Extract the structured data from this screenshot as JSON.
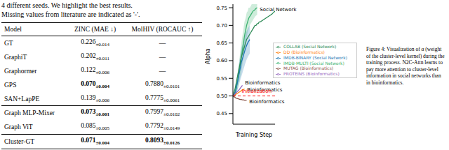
{
  "document": {
    "text_above": [
      "4 different seeds. We highlight the best results.",
      "Missing values from literature are indicated as '-'."
    ],
    "table": {
      "columns": [
        "Model",
        "ZINC (MAE ↓)",
        "MolHIV (ROCAUC ↑)"
      ],
      "groups": [
        [
          {
            "model": "GT",
            "cells": [
              {
                "mean": "0.226",
                "std": "±0.014",
                "bold": false
              },
              {
                "text": "—"
              }
            ]
          },
          {
            "model": "GraphiT",
            "cells": [
              {
                "mean": "0.202",
                "std": "±0.011",
                "bold": false
              },
              {
                "text": "—"
              }
            ]
          },
          {
            "model": "Graphormer",
            "cells": [
              {
                "mean": "0.122",
                "std": "±0.006",
                "bold": false
              },
              {
                "text": "—"
              }
            ]
          },
          {
            "model": "GPS",
            "cells": [
              {
                "mean": "0.070",
                "std": "±0.004",
                "bold": true
              },
              {
                "mean": "0.7880",
                "std": "±0.0101",
                "bold": false
              }
            ]
          },
          {
            "model": "SAN+LapPE",
            "cells": [
              {
                "mean": "0.139",
                "std": "±0.006",
                "bold": false
              },
              {
                "mean": "0.7775",
                "std": "±0.0061",
                "bold": false
              }
            ]
          }
        ],
        [
          {
            "model": "Graph MLP-Mixer",
            "cells": [
              {
                "mean": "0.073",
                "std": "±0.001",
                "bold": true
              },
              {
                "mean": "0.7997",
                "std": "±0.0102",
                "bold": false
              }
            ]
          },
          {
            "model": "Graph ViT",
            "cells": [
              {
                "mean": "0.085",
                "std": "±0.005",
                "bold": false
              },
              {
                "mean": "0.7792",
                "std": "±0.0149",
                "bold": false
              }
            ]
          }
        ],
        [
          {
            "model": "Cluster-GT",
            "cells": [
              {
                "mean": "0.071",
                "std": "±0.004",
                "bold": true
              },
              {
                "mean": "0.8093",
                "std": "±0.0126",
                "bold": true
              }
            ]
          }
        ]
      ]
    },
    "caption": "Figure 4: Visualization of α (weight of the cluster-level kernel) during the training process. N2C-Attn learns to pay more attention to cluster-level information in social networks than in bioinformatics."
  },
  "chart_data": {
    "type": "line",
    "x_label": "Training Step",
    "y_label": "Alpha",
    "xlim": [
      0,
      40
    ],
    "ylim": [
      0.42,
      0.76
    ],
    "yticks": [
      0.45,
      {
        "value": 0.5,
        "label": "0.50"
      },
      0.55,
      {
        "value": 0.6,
        "label": "0.60"
      },
      0.65,
      {
        "value": 0.7,
        "label": "0.70"
      },
      0.75
    ],
    "tick_labels": "y",
    "grid": false,
    "legend": "upper right",
    "series": [
      {
        "name": "IMDB-MULTI (Social Network)",
        "color": "#3cb371",
        "x": [
          0,
          1,
          2,
          3,
          4,
          5,
          6,
          7,
          8,
          9,
          10,
          11,
          12,
          13,
          14,
          15,
          16,
          17,
          18,
          19,
          20,
          21,
          22,
          23
        ],
        "values": [
          0.5,
          0.5,
          0.51,
          0.52,
          0.535,
          0.55,
          0.57,
          0.59,
          0.61,
          0.63,
          0.65,
          0.67,
          0.685,
          0.7,
          0.71,
          0.72,
          0.725,
          0.73,
          0.735,
          0.74,
          0.742,
          0.745,
          0.748,
          0.75
        ],
        "lower": [
          0.5,
          0.495,
          0.5,
          0.505,
          0.515,
          0.525,
          0.54,
          0.555,
          0.57,
          0.59,
          0.61,
          0.63,
          0.65,
          0.665,
          0.68,
          0.69,
          0.7,
          0.705,
          0.71,
          0.715,
          0.72,
          0.725,
          0.728,
          0.73
        ],
        "upper": [
          0.5,
          0.505,
          0.52,
          0.535,
          0.555,
          0.575,
          0.6,
          0.625,
          0.65,
          0.67,
          0.69,
          0.71,
          0.72,
          0.735,
          0.74,
          0.75,
          0.75,
          0.755,
          0.76,
          0.76,
          0.762,
          0.765,
          0.768,
          0.77
        ]
      },
      {
        "name": "IMDB-BINARY (Social Network)",
        "color": "#1f77b4",
        "x": [
          0,
          1,
          2,
          3,
          4,
          5,
          6,
          7,
          8,
          9,
          10,
          11,
          12,
          13,
          14,
          15,
          16
        ],
        "values": [
          0.5,
          0.5,
          0.51,
          0.52,
          0.535,
          0.55,
          0.565,
          0.58,
          0.595,
          0.605,
          0.615,
          0.625,
          0.635,
          0.643,
          0.65,
          0.655,
          0.66
        ],
        "lower": [
          0.5,
          0.495,
          0.5,
          0.505,
          0.515,
          0.525,
          0.535,
          0.545,
          0.555,
          0.565,
          0.575,
          0.585,
          0.595,
          0.603,
          0.61,
          0.615,
          0.62
        ],
        "upper": [
          0.5,
          0.505,
          0.52,
          0.535,
          0.555,
          0.575,
          0.595,
          0.615,
          0.635,
          0.645,
          0.655,
          0.665,
          0.675,
          0.683,
          0.69,
          0.695,
          0.7
        ]
      },
      {
        "name": "COLLAB (Social Network)",
        "color": "#2e8b57",
        "x": [
          0,
          1,
          2,
          3,
          4,
          5,
          6,
          7,
          8,
          9,
          10,
          11,
          12,
          13,
          14,
          15,
          16,
          17,
          18,
          19,
          20,
          21,
          22,
          23,
          24,
          25,
          26,
          27,
          28,
          29,
          30,
          31,
          32,
          33,
          34,
          35,
          36,
          37,
          38,
          39,
          40
        ],
        "values": [
          0.5,
          0.51,
          0.52,
          0.535,
          0.55,
          0.565,
          0.58,
          0.595,
          0.61,
          0.62,
          0.63,
          0.64,
          0.65,
          0.66,
          0.665,
          0.67,
          0.675,
          0.68,
          0.685,
          0.69,
          0.695,
          0.7,
          0.7,
          0.705,
          0.705,
          0.71,
          0.71,
          0.712,
          0.714,
          0.716,
          0.718,
          0.72,
          0.722,
          0.724,
          0.726,
          0.728,
          0.73,
          0.732,
          0.735,
          0.738,
          0.74
        ]
      },
      {
        "name": "DD (Bioinformatics)",
        "color": "#ff7f0e",
        "x": [
          0,
          1,
          2,
          3,
          4,
          5,
          6,
          7,
          8,
          9,
          10,
          11
        ],
        "values": [
          0.5,
          0.501,
          0.503,
          0.505,
          0.507,
          0.509,
          0.511,
          0.513,
          0.515,
          0.517,
          0.518,
          0.52
        ]
      },
      {
        "name": "PROTEINS (Bioinformatics)",
        "color": "#9467bd",
        "x": [
          0,
          1,
          2,
          3,
          4,
          5,
          6,
          7,
          8,
          9
        ],
        "values": [
          0.5,
          0.503,
          0.506,
          0.509,
          0.512,
          0.515,
          0.518,
          0.522,
          0.526,
          0.53
        ]
      },
      {
        "name": "MUTAG (Bioinformatics)",
        "color": "#8c564b",
        "x": [
          0,
          1,
          2,
          3,
          4,
          5,
          6,
          7,
          8,
          9,
          10,
          11,
          12,
          13
        ],
        "values": [
          0.5,
          0.498,
          0.496,
          0.494,
          0.493,
          0.492,
          0.491,
          0.49,
          0.49,
          0.489,
          0.489,
          0.488,
          0.488,
          0.488
        ]
      }
    ],
    "annotations": [
      {
        "text": "Social Network",
        "x": 23.5,
        "y": 0.745,
        "color": "#000000"
      },
      {
        "text": "Bioinformatics",
        "x": 9.5,
        "y": 0.538,
        "color": "#000000"
      },
      {
        "text": "Bioinformatics",
        "x": 11.5,
        "y": 0.518,
        "color": "#000000"
      },
      {
        "text": "Bioinformatics",
        "x": 13.5,
        "y": 0.485,
        "color": "#000000"
      },
      {
        "text": "Initialization",
        "y": 0.5,
        "color": "#ff0000",
        "line_style": "dashed"
      }
    ]
  }
}
